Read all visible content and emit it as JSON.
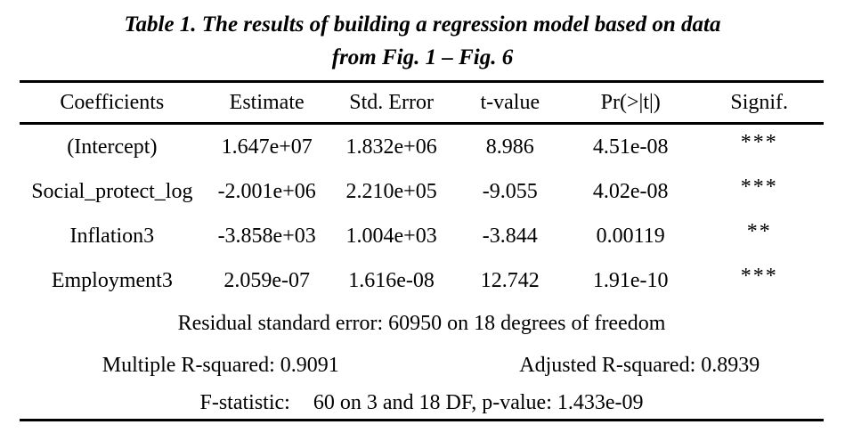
{
  "title": {
    "line1": "Table 1. The results of building a regression model based on data",
    "line2": "from Fig. 1 – Fig. 6"
  },
  "table": {
    "columns": [
      "Coefficients",
      "Estimate",
      "Std. Error",
      "t-value",
      "Pr(>|t|)",
      "Signif."
    ],
    "rows": [
      {
        "coefficient": "(Intercept)",
        "estimate": "1.647e+07",
        "std_error": "1.832e+06",
        "t_value": "8.986",
        "pr": "4.51e-08",
        "signif": "***"
      },
      {
        "coefficient": "Social_protect_log",
        "estimate": "-2.001e+06",
        "std_error": "2.210e+05",
        "t_value": "-9.055",
        "pr": "4.02e-08",
        "signif": "***"
      },
      {
        "coefficient": "Inflation3",
        "estimate": "-3.858e+03",
        "std_error": "1.004e+03",
        "t_value": "-3.844",
        "pr": "0.00119",
        "signif": "**"
      },
      {
        "coefficient": "Employment3",
        "estimate": "2.059e-07",
        "std_error": "1.616e-08",
        "t_value": "12.742",
        "pr": "1.91e-10",
        "signif": "***"
      }
    ],
    "footer": {
      "residual": "Residual standard error: 60950 on 18 degrees of freedom",
      "multiple_r_squared": "Multiple R-squared: 0.9091",
      "adjusted_r_squared": "Adjusted R-squared: 0.8939",
      "f_statistic_label": "F-statistic:",
      "f_statistic_value": "60 on 3 and 18 DF, p-value: 1.433e-09"
    }
  },
  "colors": {
    "text": "#000000",
    "background": "#ffffff",
    "rule": "#000000"
  }
}
